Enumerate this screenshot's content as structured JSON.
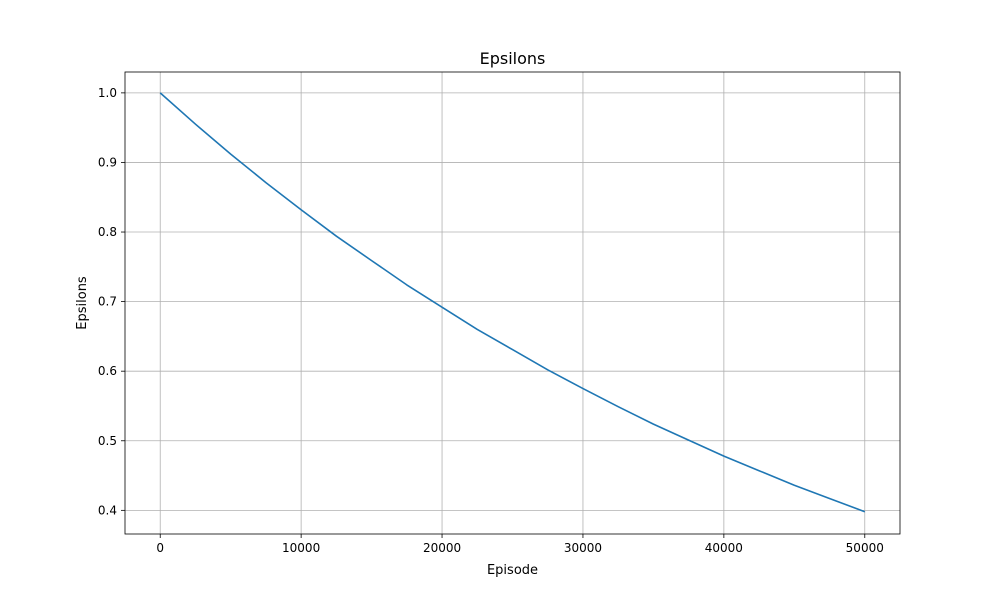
{
  "chart_data": {
    "type": "line",
    "title": "Epsilons",
    "xlabel": "Episode",
    "ylabel": "Epsilons",
    "xlim": [
      -2500,
      52500
    ],
    "ylim": [
      0.366,
      1.03
    ],
    "xticks": [
      0,
      10000,
      20000,
      30000,
      40000,
      50000
    ],
    "xtick_labels": [
      "0",
      "10000",
      "20000",
      "30000",
      "40000",
      "50000"
    ],
    "yticks": [
      0.4,
      0.5,
      0.6,
      0.7,
      0.8,
      0.9,
      1.0
    ],
    "ytick_labels": [
      "0.4",
      "0.5",
      "0.6",
      "0.7",
      "0.8",
      "0.9",
      "1.0"
    ],
    "grid": true,
    "series": [
      {
        "color": "#1f77b4",
        "x": [
          0,
          2500,
          5000,
          7500,
          10000,
          12500,
          15000,
          17500,
          20000,
          22500,
          25000,
          27500,
          30000,
          32500,
          35000,
          37500,
          40000,
          42500,
          45000,
          47500,
          50000
        ],
        "y": [
          1.0,
          0.955,
          0.912,
          0.871,
          0.832,
          0.794,
          0.759,
          0.724,
          0.692,
          0.66,
          0.631,
          0.602,
          0.575,
          0.549,
          0.524,
          0.501,
          0.478,
          0.457,
          0.436,
          0.417,
          0.398
        ]
      }
    ]
  }
}
